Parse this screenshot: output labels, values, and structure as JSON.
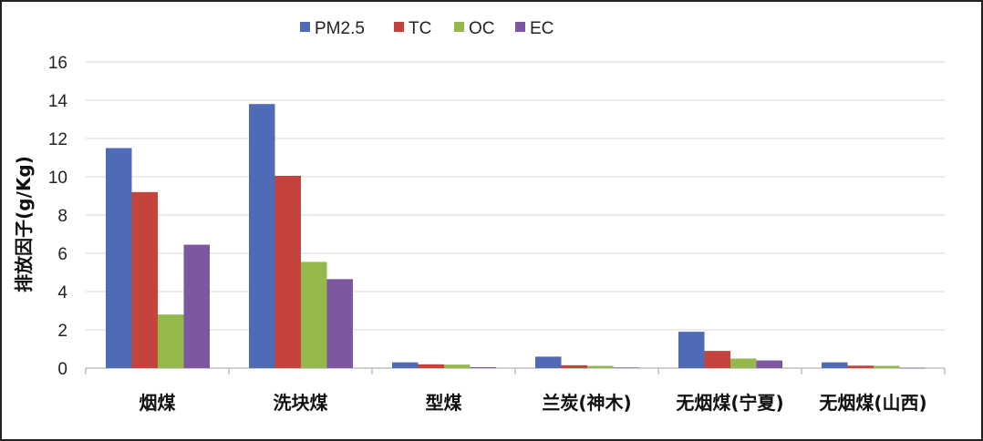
{
  "chart_data": {
    "type": "bar",
    "title": "",
    "xlabel": "",
    "ylabel": "排放因子(g/Kg)",
    "ylim": [
      0,
      16
    ],
    "yticks": [
      0,
      2,
      4,
      6,
      8,
      10,
      12,
      14,
      16
    ],
    "grid": true,
    "legend_position": "top-center",
    "categories": [
      "烟煤",
      "洗块煤",
      "型煤",
      "兰炭(神木)",
      "无烟煤(宁夏)",
      "无烟煤(山西)"
    ],
    "series": [
      {
        "name": "PM2.5",
        "color": "#4f6bb5",
        "values": [
          11.5,
          13.8,
          0.3,
          0.6,
          1.9,
          0.3
        ]
      },
      {
        "name": "TC",
        "color": "#c4433d",
        "values": [
          9.2,
          10.05,
          0.2,
          0.15,
          0.9,
          0.13
        ]
      },
      {
        "name": "OC",
        "color": "#95b84d",
        "values": [
          2.8,
          5.55,
          0.18,
          0.12,
          0.5,
          0.12
        ]
      },
      {
        "name": "EC",
        "color": "#7d57a0",
        "values": [
          6.45,
          4.65,
          0.05,
          0.03,
          0.4,
          0.01
        ]
      }
    ]
  }
}
